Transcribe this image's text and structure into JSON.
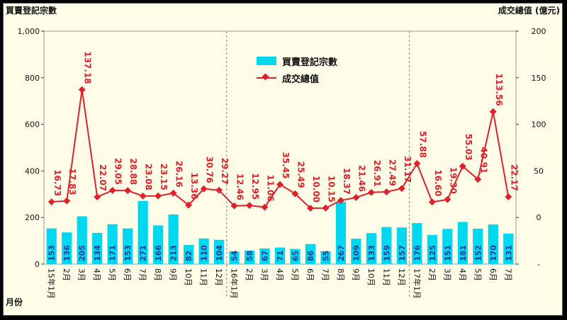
{
  "chart_data": {
    "type": "bar",
    "ylabel": "買賣登記宗數",
    "ylabel_right": "成交總值 (億元)",
    "xlabel": "月份",
    "ylim": [
      0,
      1000
    ],
    "ylim_right": [
      -50,
      200
    ],
    "yticks": [
      "0",
      "200",
      "400",
      "600",
      "800",
      "1,000"
    ],
    "yticks_right": [
      "-",
      "0",
      "50",
      "100",
      "150",
      "200"
    ],
    "categories": [
      "15年1月",
      "2月",
      "3月",
      "4月",
      "5月",
      "6月",
      "7月",
      "8月",
      "9月",
      "10月",
      "11月",
      "12月",
      "16年1月",
      "2月",
      "3月",
      "4月",
      "5月",
      "6月",
      "7月",
      "8月",
      "9月",
      "10月",
      "11月",
      "12月",
      "17年1月",
      "2月",
      "3月",
      "4月",
      "5月",
      "6月",
      "7月"
    ],
    "series": [
      {
        "name": "買賣登記宗數",
        "type": "bar",
        "color": "#00d8f0",
        "values": [
          153,
          136,
          205,
          134,
          171,
          153,
          271,
          166,
          213,
          82,
          110,
          104,
          54,
          58,
          67,
          71,
          65,
          86,
          55,
          267,
          109,
          133,
          159,
          157,
          176,
          125,
          151,
          181,
          152,
          170,
          131
        ]
      },
      {
        "name": "成交總值",
        "type": "line",
        "axis": "right",
        "color": "#e0202a",
        "values": [
          16.73,
          17.83,
          137.18,
          22.07,
          29.05,
          28.88,
          23.08,
          23.15,
          26.16,
          13.36,
          30.76,
          29.27,
          12.46,
          12.95,
          11.06,
          35.45,
          25.49,
          10.0,
          10.15,
          18.37,
          21.46,
          26.91,
          27.49,
          31.17,
          57.88,
          16.6,
          19.3,
          55.03,
          40.91,
          113.56,
          22.17
        ]
      }
    ],
    "bar_labels": [
      "153",
      "136",
      "205",
      "134",
      "171",
      "153",
      "271",
      "166",
      "213",
      "82",
      "110",
      "104",
      "54",
      "58",
      "67",
      "71",
      "65",
      "86",
      "55",
      "267",
      "109",
      "133",
      "159",
      "157",
      "176",
      "125",
      "151",
      "181",
      "152",
      "170",
      "131"
    ],
    "line_labels": [
      "16.73",
      "17.83",
      "137.18",
      "22.07",
      "29.05",
      "28.88",
      "23.08",
      "23.15",
      "26.16",
      "13.36",
      "30.76",
      "29.27",
      "12.46",
      "12.95",
      "11.06",
      "35.45",
      "25.49",
      "10.00",
      "10.15",
      "18.37",
      "21.46",
      "26.91",
      "27.49",
      "31.17",
      "57.88",
      "16.60",
      "19.30",
      "55.03",
      "40.91",
      "113.56",
      "22.17"
    ],
    "legend": [
      "買賣登記宗數",
      "成交總值"
    ],
    "legend_position": "top-center",
    "separators_after": [
      11,
      23
    ]
  }
}
